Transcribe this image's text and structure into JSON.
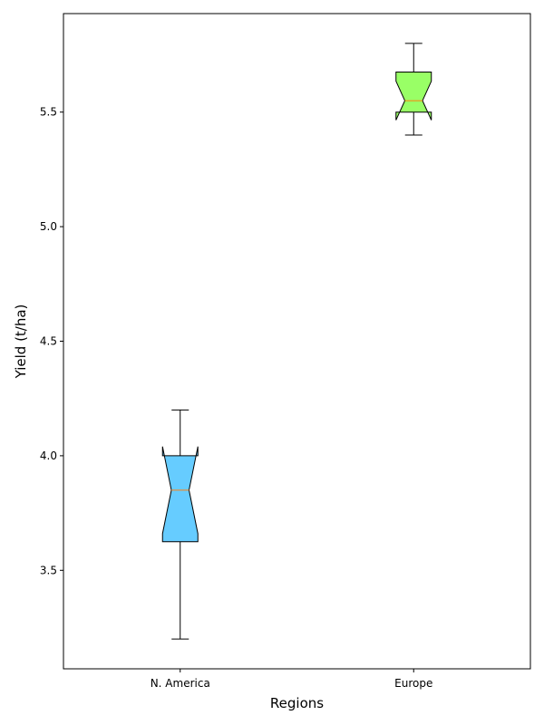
{
  "chart_data": {
    "type": "box",
    "title": "",
    "xlabel": "Regions",
    "ylabel": "Yield (t/ha)",
    "ylim": [
      3.07,
      5.93
    ],
    "yticks": [
      3.5,
      4.0,
      4.5,
      5.0,
      5.5
    ],
    "ytick_labels": [
      "3.5",
      "4.0",
      "4.5",
      "5.0",
      "5.5"
    ],
    "notched": true,
    "grid": false,
    "categories": [
      "N. America",
      "Europe"
    ],
    "series": [
      {
        "category": "N. America",
        "whisker_low": 3.2,
        "q1": 3.625,
        "median": 3.85,
        "q3": 4.0,
        "whisker_high": 4.2,
        "notch_low": 3.66,
        "notch_high": 4.04,
        "color": "#66ccff"
      },
      {
        "category": "Europe",
        "whisker_low": 5.4,
        "q1": 5.5,
        "median": 5.55,
        "q3": 5.675,
        "whisker_high": 5.8,
        "notch_low": 5.465,
        "notch_high": 5.635,
        "color": "#99ff66"
      }
    ],
    "median_color": "#ff7f0e"
  }
}
